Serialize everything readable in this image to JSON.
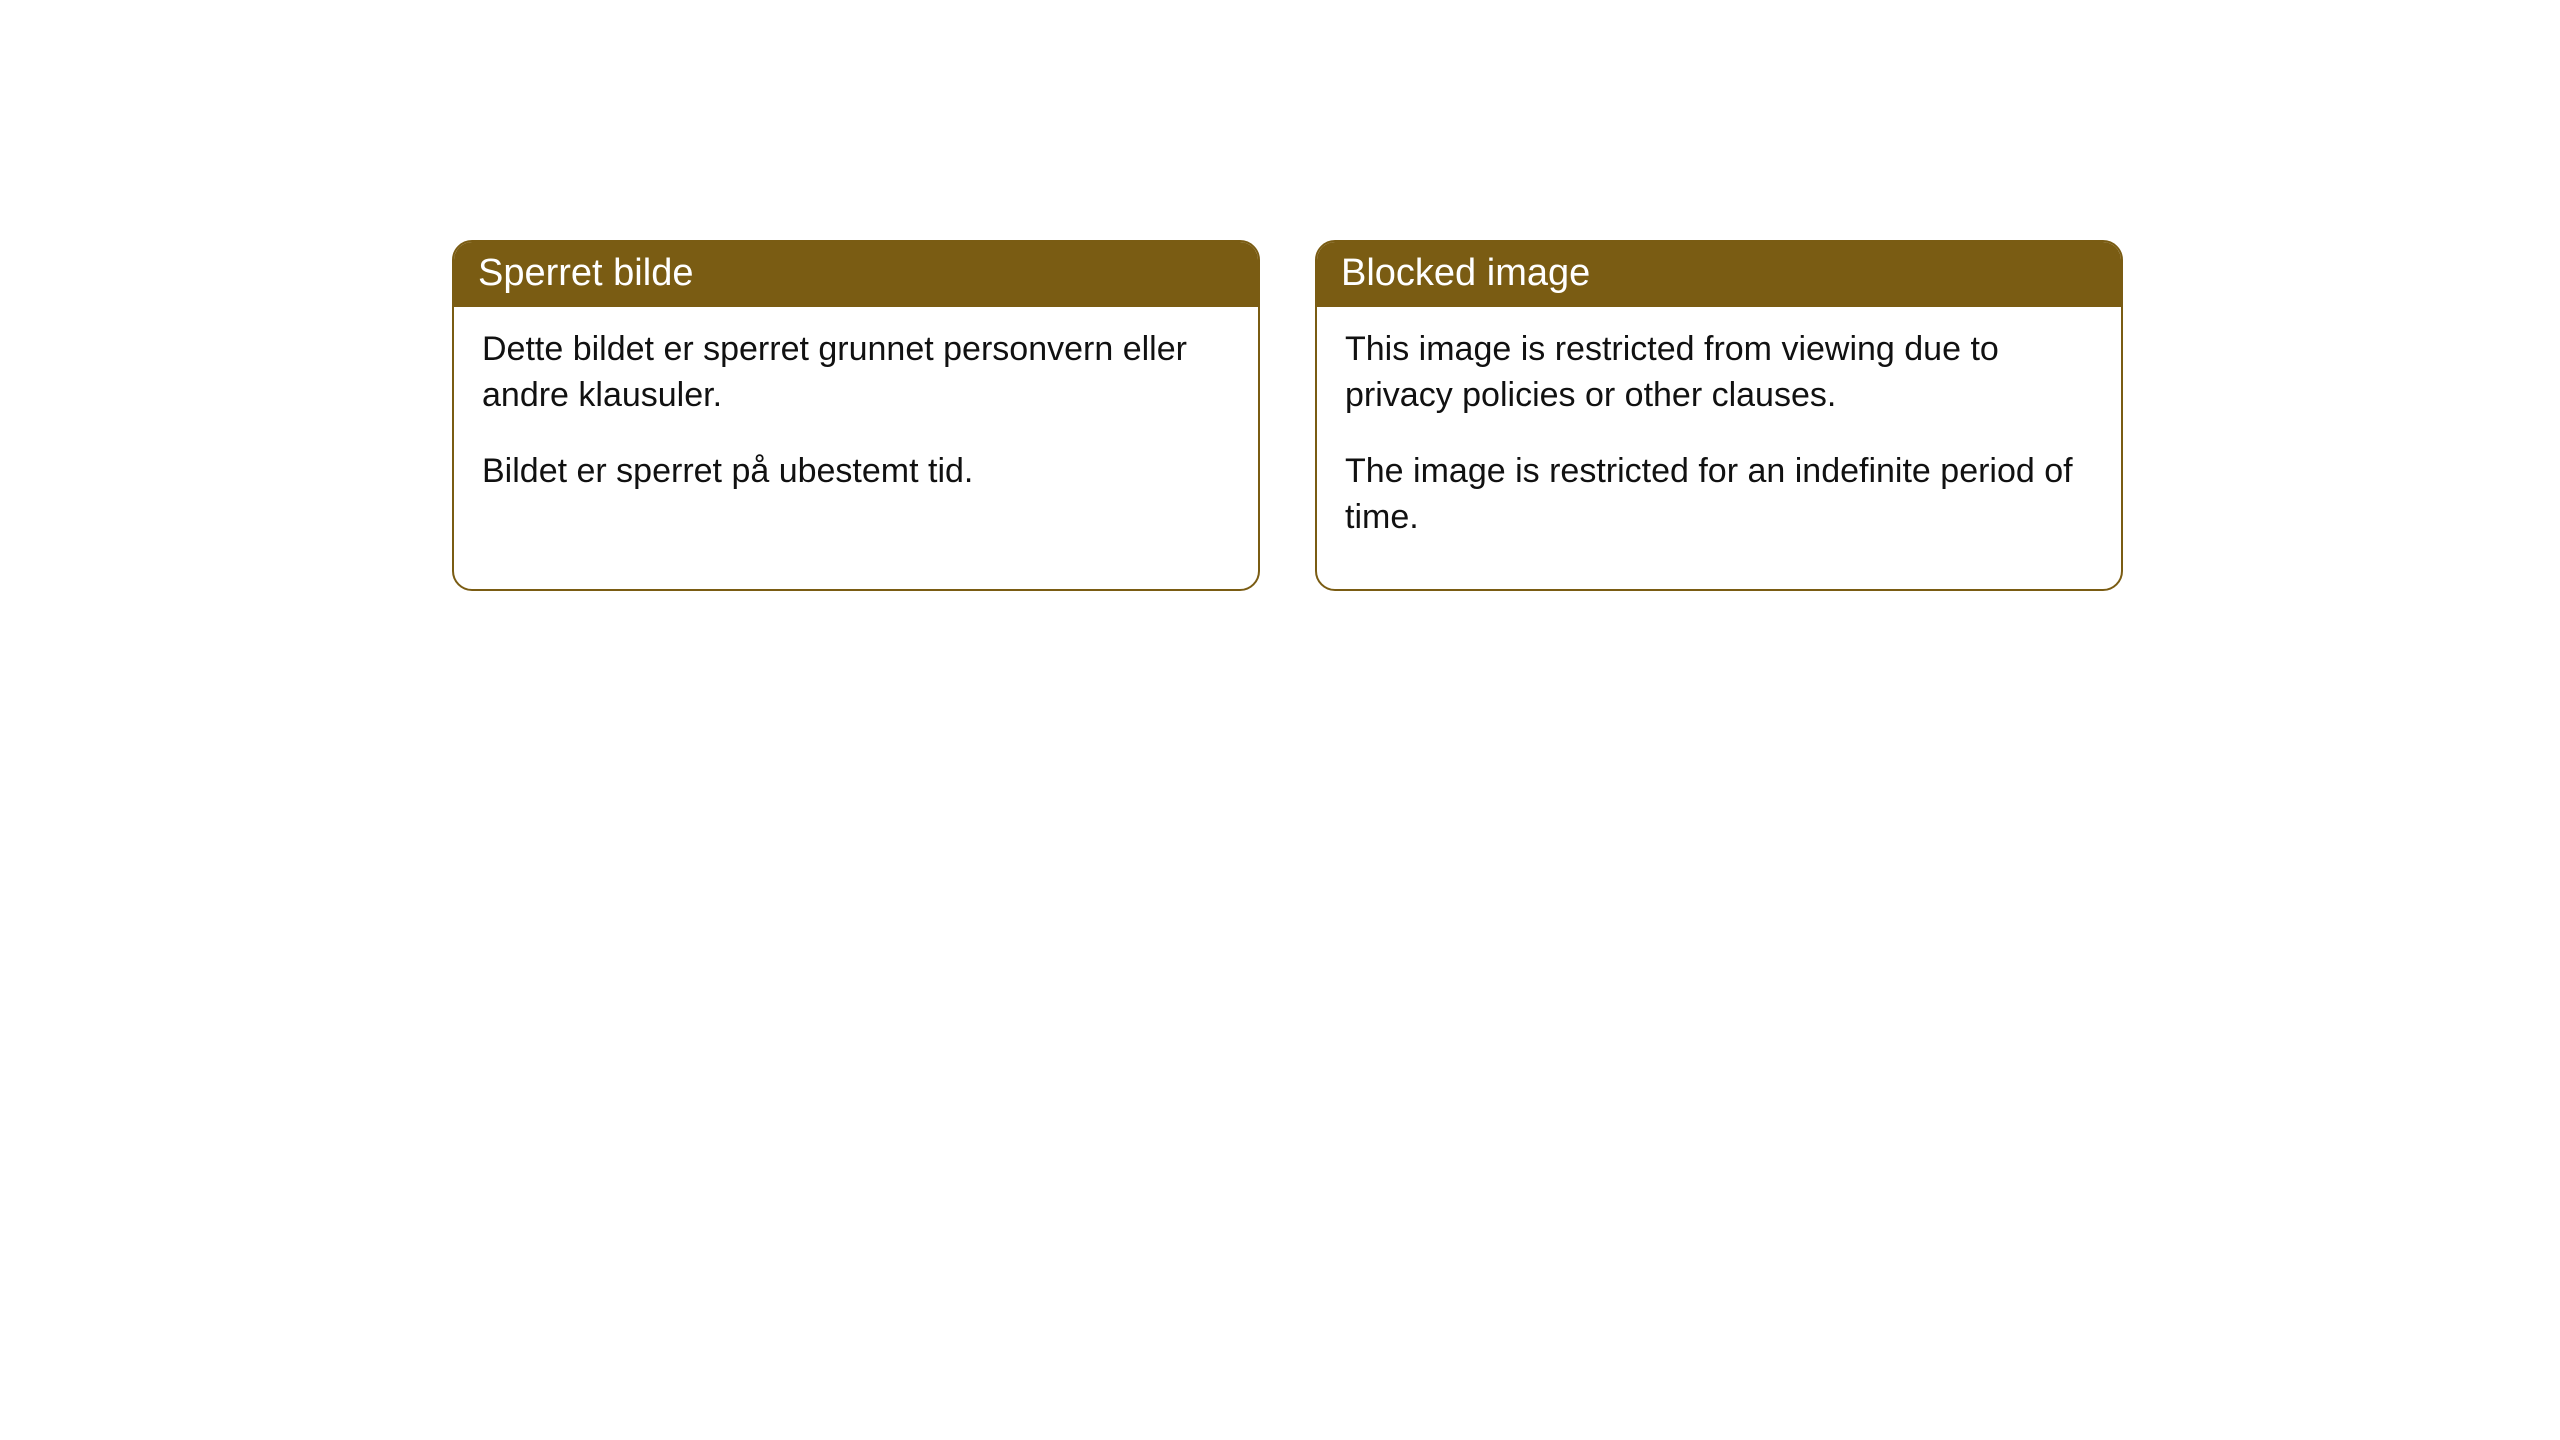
{
  "cards": [
    {
      "title": "Sperret bilde",
      "paragraphs": [
        "Dette bildet er sperret grunnet personvern eller andre klausuler.",
        "Bildet er sperret på ubestemt tid."
      ]
    },
    {
      "title": "Blocked image",
      "paragraphs": [
        "This image is restricted from viewing due to privacy policies or other clauses.",
        "The image is restricted for an indefinite period of time."
      ]
    }
  ],
  "styling": {
    "header_bg_color": "#7a5c13",
    "header_text_color": "#ffffff",
    "border_color": "#7a5c13",
    "body_bg_color": "#ffffff",
    "body_text_color": "#111111",
    "border_radius": 20,
    "header_fontsize": 38,
    "body_fontsize": 34
  }
}
